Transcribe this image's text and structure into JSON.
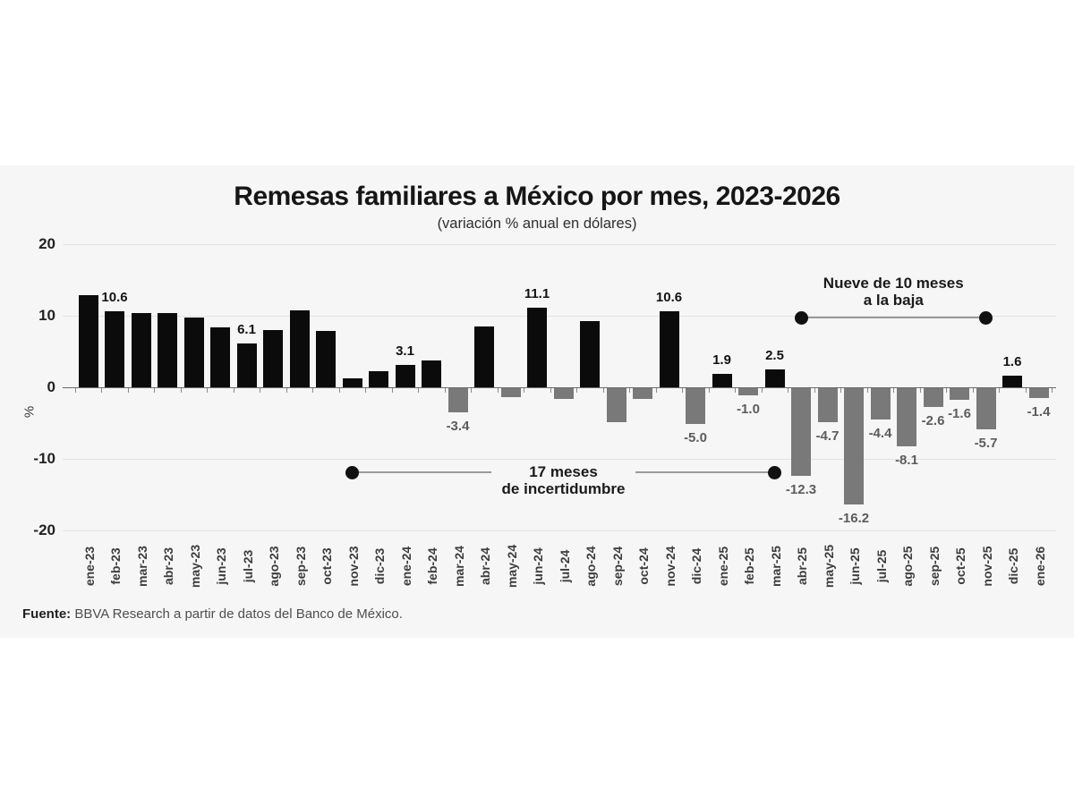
{
  "page": {
    "background": "#ffffff",
    "panel_background": "#f6f6f6"
  },
  "header": {
    "title": "Remesas familiares a México por mes, 2023-2026",
    "subtitle": "(variación % anual en dólares)"
  },
  "source": {
    "label": "Fuente:",
    "text": "BBVA Research a partir de datos del Banco de México."
  },
  "y_axis": {
    "unit_label": "%",
    "tick_values": [
      20,
      10,
      0,
      -10,
      -20
    ]
  },
  "annotations": [
    {
      "id": "incertidumbre",
      "lines": [
        "17 meses",
        "de incertidumbre"
      ],
      "from": "nov-23",
      "to": "mar-25",
      "value_level": -11.9,
      "text_position": "on-line"
    },
    {
      "id": "a-la-baja",
      "lines": [
        "Nueve de 10 meses",
        "a la baja"
      ],
      "from": "abr-25",
      "to": "nov-25",
      "value_level": 9.75,
      "text_position": "above-line"
    }
  ],
  "chart_data": {
    "type": "bar",
    "title": "Remesas familiares a México por mes, 2023-2026",
    "subtitle": "(variación % anual en dólares)",
    "xlabel": "",
    "ylabel": "%",
    "ylim": [
      -20,
      20
    ],
    "grid_values": [
      20,
      10,
      -10,
      -20
    ],
    "legend": "none",
    "categories": [
      "ene-23",
      "feb-23",
      "mar-23",
      "abr-23",
      "may-23",
      "jun-23",
      "jul-23",
      "ago-23",
      "sep-23",
      "oct-23",
      "nov-23",
      "dic-23",
      "ene-24",
      "feb-24",
      "mar-24",
      "abr-24",
      "may-24",
      "jun-24",
      "jul-24",
      "ago-24",
      "sep-24",
      "oct-24",
      "nov-24",
      "dic-24",
      "ene-25",
      "feb-25",
      "mar-25",
      "abr-25",
      "may-25",
      "jun-25",
      "jul-25",
      "ago-25",
      "sep-25",
      "oct-25",
      "nov-25",
      "dic-25",
      "ene-26"
    ],
    "values": [
      12.9,
      10.6,
      10.4,
      10.4,
      9.7,
      8.4,
      6.1,
      8.0,
      10.8,
      7.9,
      1.3,
      2.2,
      3.1,
      3.7,
      -3.4,
      8.5,
      -1.3,
      11.1,
      -1.5,
      9.3,
      -4.8,
      -1.5,
      10.6,
      -5.0,
      1.9,
      -1.0,
      2.5,
      -12.3,
      -4.7,
      -16.2,
      -4.4,
      -8.1,
      -2.6,
      -1.6,
      -5.7,
      1.6,
      -1.4
    ],
    "data_labels": [
      null,
      "10.6",
      null,
      null,
      null,
      null,
      "6.1",
      null,
      null,
      null,
      null,
      null,
      "3.1",
      null,
      "-3.4",
      null,
      null,
      "11.1",
      null,
      null,
      null,
      null,
      "10.6",
      "-5.0",
      "1.9",
      "-1.0",
      "2.5",
      "-12.3",
      "-4.7",
      "-16.2",
      "-4.4",
      "-8.1",
      "-2.6",
      "-1.6",
      "-5.7",
      "1.6",
      "-1.4"
    ],
    "bar_colors": {
      "positive": "#0b0b0b",
      "negative": "#797979"
    },
    "label_colors": {
      "positive": "#121212",
      "negative": "#5c5c5c"
    }
  }
}
